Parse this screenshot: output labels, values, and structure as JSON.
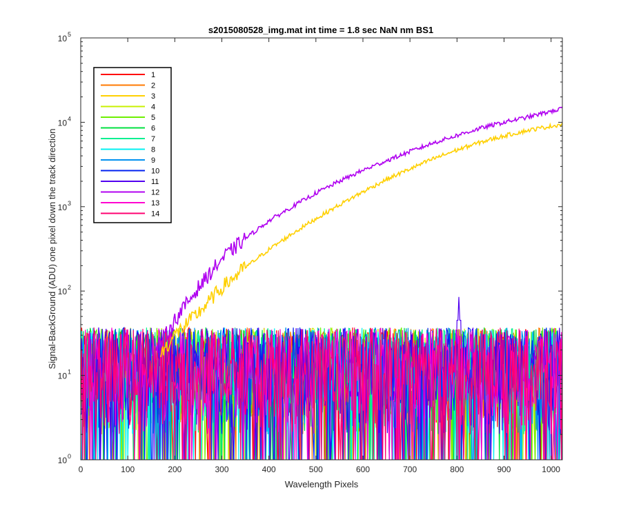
{
  "chart_data": {
    "type": "line",
    "title": "s2015080528_img.mat int time = 1.8 sec  NaN nm BS1",
    "xlabel": "Wavelength Pixels",
    "ylabel": "Signal-BackGround (ADU) one pixel down the track direction",
    "xlim": [
      0,
      1024
    ],
    "ylim": [
      1,
      100000
    ],
    "yscale": "log",
    "x_ticks": [
      0,
      100,
      200,
      300,
      400,
      500,
      600,
      700,
      800,
      900,
      1000
    ],
    "y_ticks": [
      {
        "value": 1,
        "label": "10",
        "exp": "0"
      },
      {
        "value": 10,
        "label": "10",
        "exp": "1"
      },
      {
        "value": 100,
        "label": "10",
        "exp": "2"
      },
      {
        "value": 1000,
        "label": "10",
        "exp": "3"
      },
      {
        "value": 10000,
        "label": "10",
        "exp": "4"
      },
      {
        "value": 100000,
        "label": "10",
        "exp": "5"
      }
    ],
    "grid": false,
    "legend_position": "top-left",
    "noise_floor": {
      "x_range": [
        0,
        1024
      ],
      "typical_range": [
        2,
        40
      ],
      "peak_near_x": 805,
      "peak_value": 85
    },
    "series": [
      {
        "name": "1",
        "color": "#ff0000",
        "kind": "noise"
      },
      {
        "name": "2",
        "color": "#ff7a00",
        "kind": "noise"
      },
      {
        "name": "3",
        "color": "#ffd000",
        "kind": "signal",
        "x": [
          170,
          200,
          250,
          300,
          350,
          400,
          450,
          500,
          550,
          600,
          650,
          700,
          750,
          800,
          850,
          900,
          950,
          1000,
          1024
        ],
        "y": [
          18,
          30,
          55,
          110,
          190,
          310,
          480,
          720,
          1050,
          1500,
          2100,
          2800,
          3700,
          4700,
          5800,
          6900,
          8000,
          9000,
          9500
        ]
      },
      {
        "name": "4",
        "color": "#c8f000",
        "kind": "noise"
      },
      {
        "name": "5",
        "color": "#6cf000",
        "kind": "noise"
      },
      {
        "name": "6",
        "color": "#00e040",
        "kind": "noise"
      },
      {
        "name": "7",
        "color": "#00f090",
        "kind": "noise"
      },
      {
        "name": "8",
        "color": "#00f0f0",
        "kind": "noise"
      },
      {
        "name": "9",
        "color": "#0090f0",
        "kind": "noise"
      },
      {
        "name": "10",
        "color": "#0020f0",
        "kind": "noise"
      },
      {
        "name": "11",
        "color": "#5000f0",
        "kind": "noise"
      },
      {
        "name": "12",
        "color": "#b000f0",
        "kind": "signal",
        "x": [
          160,
          200,
          250,
          300,
          350,
          400,
          450,
          500,
          550,
          600,
          650,
          700,
          750,
          800,
          850,
          900,
          950,
          1000,
          1024
        ],
        "y": [
          20,
          45,
          110,
          240,
          420,
          680,
          1000,
          1450,
          2000,
          2700,
          3500,
          4500,
          5700,
          7000,
          8500,
          10000,
          11500,
          13500,
          14500
        ]
      },
      {
        "name": "13",
        "color": "#ff00d0",
        "kind": "noise"
      },
      {
        "name": "14",
        "color": "#ff0070",
        "kind": "noise"
      }
    ]
  }
}
